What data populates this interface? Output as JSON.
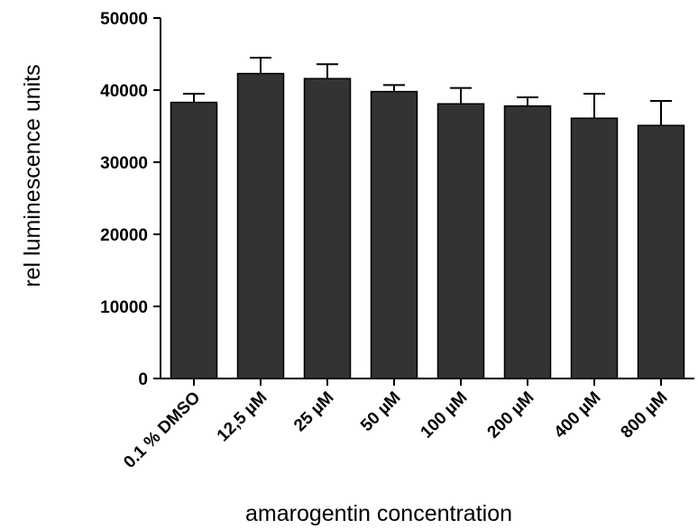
{
  "chart_data": {
    "type": "bar",
    "title": "",
    "xlabel": "amarogentin concentration",
    "ylabel": "rel luminescence units",
    "categories": [
      "0.1 % DMSO",
      "12,5 µM",
      "25 µM",
      "50 µM",
      "100 µM",
      "200 µM",
      "400 µM",
      "800 µM"
    ],
    "values": [
      38300,
      42300,
      41600,
      39800,
      38100,
      37800,
      36100,
      35100
    ],
    "error_upper": [
      1200,
      2200,
      2000,
      900,
      2200,
      1200,
      3400,
      3400
    ],
    "ylim": [
      0,
      50000
    ],
    "yticks": [
      "0",
      "10000",
      "20000",
      "30000",
      "40000",
      "50000"
    ],
    "grid": false,
    "legend": "none",
    "bar_color": "#333333",
    "axis_color": "#000000"
  }
}
